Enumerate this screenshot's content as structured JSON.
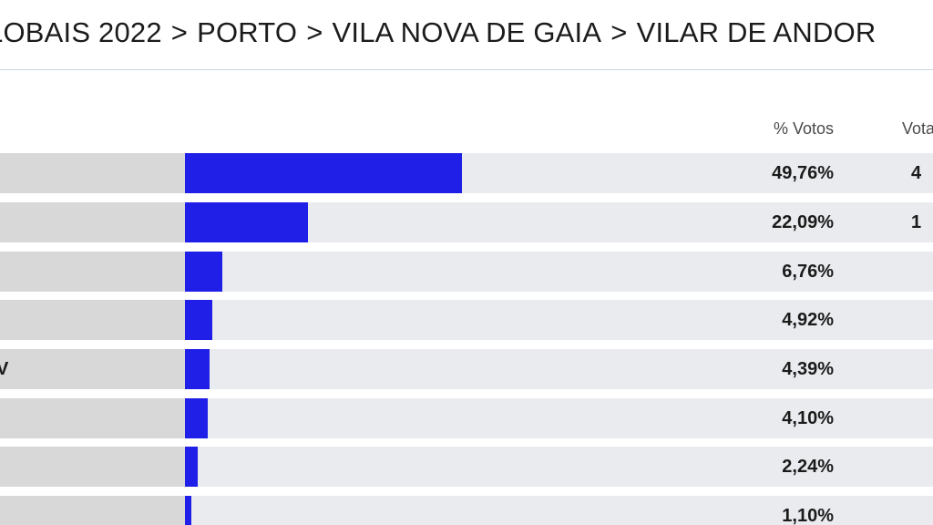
{
  "breadcrumb": {
    "items": [
      "LOBAIS 2022",
      "PORTO",
      "VILA NOVA DE GAIA",
      "VILAR DE ANDOR"
    ],
    "separator": ">"
  },
  "table": {
    "columns": {
      "pct": "% Votos",
      "votes": "Vota"
    },
    "rows": [
      {
        "name": "",
        "pct": "49,76%",
        "pct_value": 49.76,
        "votes": "4"
      },
      {
        "name": "",
        "pct": "22,09%",
        "pct_value": 22.09,
        "votes": "1"
      },
      {
        "name": "",
        "pct": "6,76%",
        "pct_value": 6.76,
        "votes": ""
      },
      {
        "name": "",
        "pct": "4,92%",
        "pct_value": 4.92,
        "votes": ""
      },
      {
        "name": "V",
        "pct": "4,39%",
        "pct_value": 4.39,
        "votes": ""
      },
      {
        "name": "",
        "pct": "4,10%",
        "pct_value": 4.1,
        "votes": ""
      },
      {
        "name": "",
        "pct": "2,24%",
        "pct_value": 2.24,
        "votes": ""
      },
      {
        "name": "",
        "pct": "1,10%",
        "pct_value": 1.1,
        "votes": ""
      }
    ]
  },
  "colors": {
    "bar": "#1f1fe8",
    "track": "#e9ebee",
    "name_cell": "#d8d8d8",
    "rule": "#c9d6e2"
  }
}
